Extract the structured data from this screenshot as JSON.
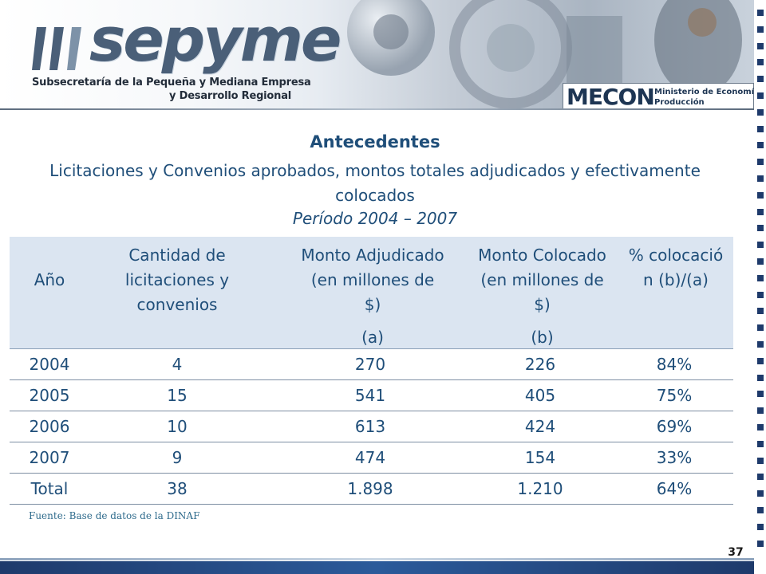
{
  "brand": {
    "name": "sepyme",
    "subtitle_line1": "Subsecretaría de la Pequeña y Mediana Empresa",
    "subtitle_line2": "y Desarrollo Regional"
  },
  "mecon": {
    "mark": "MECON",
    "line1": "Ministerio de Economía y",
    "line2": "Producción"
  },
  "heading": {
    "title": "Antecedentes",
    "subtitle": "Licitaciones y Convenios aprobados, montos totales adjudicados y efectivamente colocados",
    "period": "Período 2004 – 2007"
  },
  "table": {
    "headers": [
      {
        "label": "Año",
        "extra": ""
      },
      {
        "label": "Cantidad de licitaciones y convenios",
        "extra": ""
      },
      {
        "label": "Monto Adjudicado (en millones de $)",
        "extra": "(a)"
      },
      {
        "label": "Monto Colocado (en millones de $)",
        "extra": "(b)"
      },
      {
        "label": "% colocació n (b)/(a)",
        "extra": ""
      }
    ],
    "rows": [
      [
        "2004",
        "4",
        "270",
        "226",
        "84%"
      ],
      [
        "2005",
        "15",
        "541",
        "405",
        "75%"
      ],
      [
        "2006",
        "10",
        "613",
        "424",
        "69%"
      ],
      [
        "2007",
        "9",
        "474",
        "154",
        "33%"
      ],
      [
        "Total",
        "38",
        "1.898",
        "1.210",
        "64%"
      ]
    ]
  },
  "source": "Fuente: Base de datos de la DINAF",
  "page_number": "37",
  "colors": {
    "accent": "#1f4e79",
    "header_bg": "#dbe5f1",
    "strip": "#1e3a6b"
  }
}
